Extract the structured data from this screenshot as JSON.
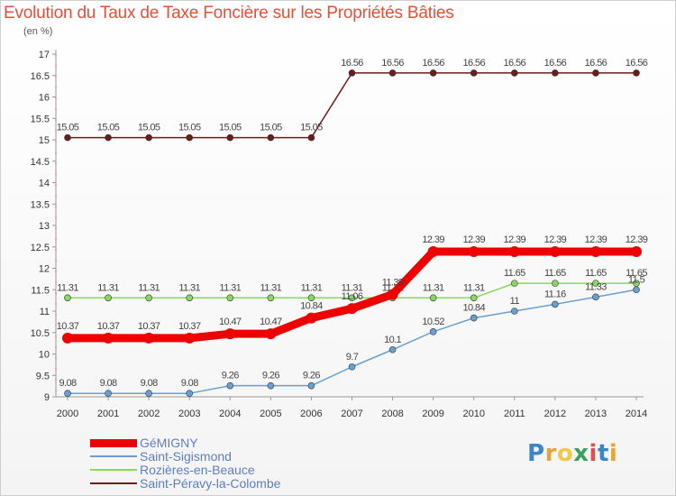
{
  "title": "Evolution du Taux de Taxe Foncière sur les Propriétés Bâties",
  "subtitle": "(en %)",
  "logo": {
    "letters": [
      "P",
      "r",
      "o",
      "x",
      "i",
      "t",
      "i"
    ],
    "colors": [
      "#3a86c8",
      "#e8a33a",
      "#f0c94a",
      "#3aa05a",
      "#e05050",
      "#3a86c8",
      "#e8a33a"
    ]
  },
  "chart_data": {
    "type": "line",
    "title": "Evolution du Taux de Taxe Foncière sur les Propriétés Bâties",
    "ylabel": "(en %)",
    "xlabel": "",
    "x": [
      "2000",
      "2001",
      "2002",
      "2003",
      "2004",
      "2005",
      "2006",
      "2007",
      "2008",
      "2009",
      "2010",
      "2011",
      "2012",
      "2013",
      "2014"
    ],
    "ylim": [
      9,
      17
    ],
    "yticks": [
      "9",
      "9.5",
      "10",
      "10.5",
      "11",
      "11.5",
      "12",
      "12.5",
      "13",
      "13.5",
      "14",
      "14.5",
      "15",
      "15.5",
      "16",
      "16.5",
      "17"
    ],
    "grid": false,
    "legend_position": "bottom-left",
    "series": [
      {
        "name": "Saint-Péravy-la-Colombe",
        "color": "#6b1c1c",
        "values": [
          15.05,
          15.05,
          15.05,
          15.05,
          15.05,
          15.05,
          15.05,
          16.56,
          16.56,
          16.56,
          16.56,
          16.56,
          16.56,
          16.56,
          16.56
        ],
        "labels": [
          "15.05",
          "15.05",
          "15.05",
          "15.05",
          "15.05",
          "15.05",
          "15.05",
          "16.56",
          "16.56",
          "16.56",
          "16.56",
          "16.56",
          "16.56",
          "16.56",
          "16.56"
        ]
      },
      {
        "name": "Rozières-en-Beauce",
        "color": "#88d860",
        "values": [
          11.31,
          11.31,
          11.31,
          11.31,
          11.31,
          11.31,
          11.31,
          11.31,
          11.31,
          11.31,
          11.31,
          11.65,
          11.65,
          11.65,
          11.65
        ],
        "labels": [
          "11.31",
          "11.31",
          "11.31",
          "11.31",
          "11.31",
          "11.31",
          "11.31",
          "11.31",
          "11.31",
          "11.31",
          "11.31",
          "11.65",
          "11.65",
          "11.65",
          "11.65"
        ]
      },
      {
        "name": "Saint-Sigismond",
        "color": "#6a9fd0",
        "values": [
          9.08,
          9.08,
          9.08,
          9.08,
          9.26,
          9.26,
          9.26,
          9.7,
          10.1,
          10.52,
          10.84,
          11,
          11.16,
          11.33,
          11.5
        ],
        "labels": [
          "9.08",
          "9.08",
          "9.08",
          "9.08",
          "9.26",
          "9.26",
          "9.26",
          "9.7",
          "10.1",
          "10.52",
          "10.84",
          "11",
          "11.16",
          "11.33",
          "11.5"
        ]
      },
      {
        "name": "GéMIGNY",
        "color": "#ee0000",
        "values": [
          10.37,
          10.37,
          10.37,
          10.37,
          10.47,
          10.47,
          10.84,
          11.06,
          11.39,
          12.39,
          12.39,
          12.39,
          12.39,
          12.39,
          12.39
        ],
        "labels": [
          "10.37",
          "10.37",
          "10.37",
          "10.37",
          "10.47",
          "10.47",
          "10.84",
          "11.06",
          "11.39",
          "12.39",
          "12.39",
          "12.39",
          "12.39",
          "12.39",
          "12.39"
        ]
      }
    ],
    "legend": [
      "GéMIGNY",
      "Saint-Sigismond",
      "Rozières-en-Beauce",
      "Saint-Péravy-la-Colombe"
    ]
  }
}
